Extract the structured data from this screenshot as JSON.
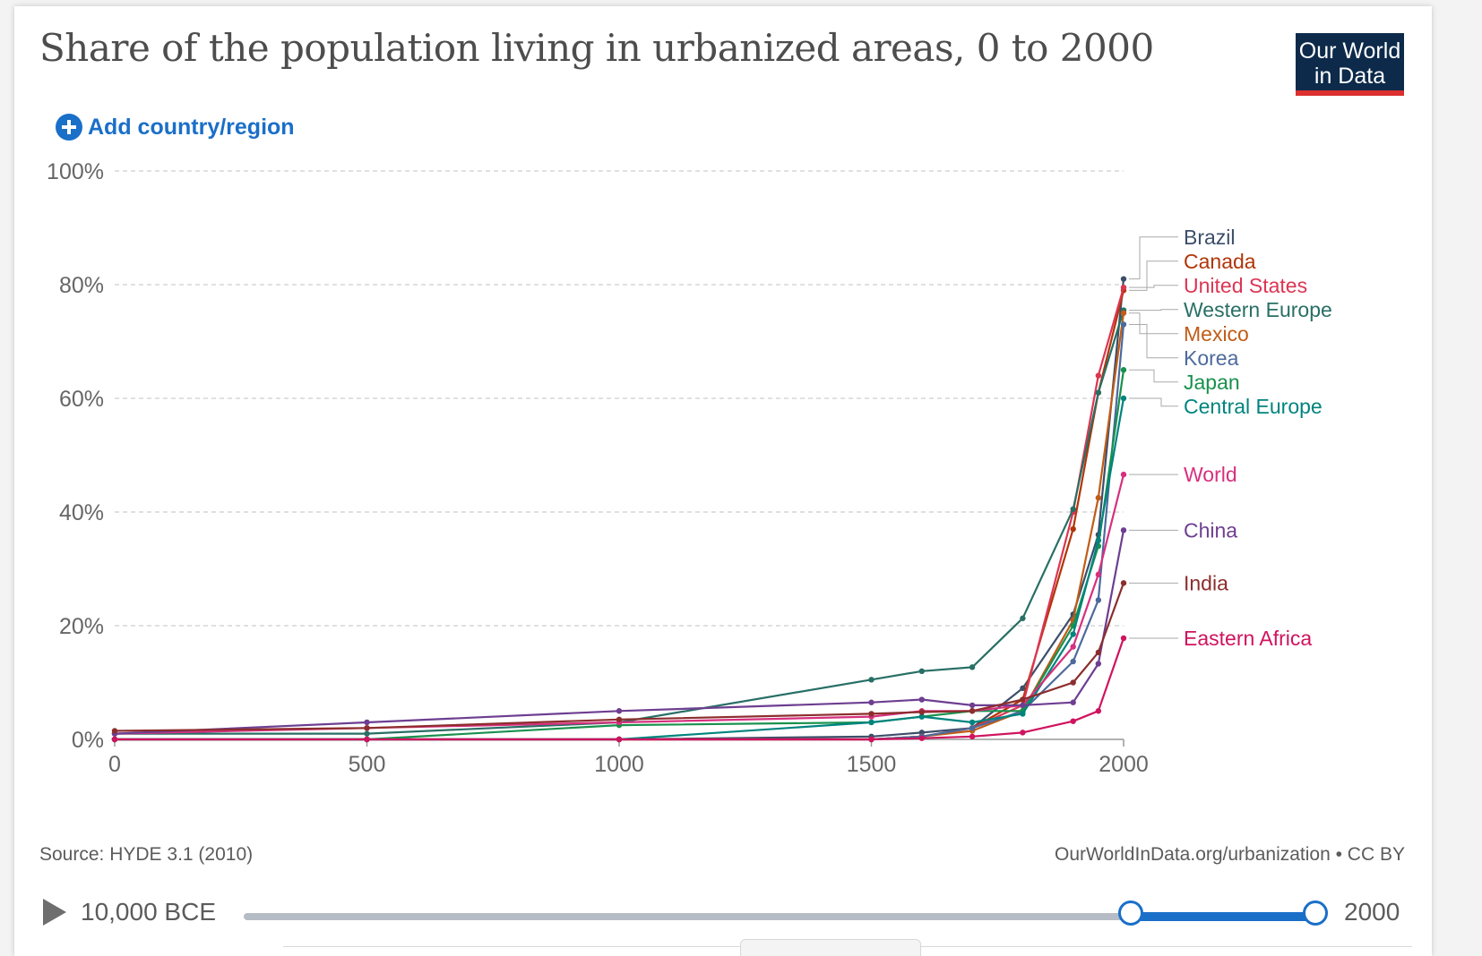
{
  "title": "Share of the population living in urbanized areas, 0 to 2000",
  "logo": {
    "line1": "Our World",
    "line2": "in Data"
  },
  "add_button": {
    "label": "Add country/region"
  },
  "footer": {
    "source": "Source: HYDE 3.1 (2010)",
    "url": "OurWorldInData.org/urbanization • CC BY"
  },
  "timeline": {
    "start_label": "10,000 BCE",
    "end_label": "2000"
  },
  "chart_data": {
    "type": "line",
    "title": "Share of the population living in urbanized areas, 0 to 2000",
    "xlim": [
      0,
      2000
    ],
    "ylim": [
      0,
      100
    ],
    "x_ticks": [
      0,
      500,
      1000,
      1500,
      2000
    ],
    "x_tick_labels": [
      "0",
      "500",
      "1000",
      "1500",
      "2000"
    ],
    "y_ticks": [
      0,
      20,
      40,
      60,
      80,
      100
    ],
    "y_tick_labels": [
      "0%",
      "20%",
      "40%",
      "60%",
      "80%",
      "100%"
    ],
    "grid": true,
    "legend_placement": "right",
    "series": [
      {
        "name": "Brazil",
        "color": "#3c4e6a",
        "points": [
          [
            0,
            0
          ],
          [
            500,
            0
          ],
          [
            1000,
            0
          ],
          [
            1500,
            0.5
          ],
          [
            1600,
            1.2
          ],
          [
            1700,
            2
          ],
          [
            1800,
            9
          ],
          [
            1900,
            22
          ],
          [
            1950,
            36
          ],
          [
            2000,
            81
          ]
        ]
      },
      {
        "name": "Canada",
        "color": "#b13507",
        "points": [
          [
            0,
            0
          ],
          [
            500,
            0
          ],
          [
            1000,
            0
          ],
          [
            1500,
            0
          ],
          [
            1600,
            0.5
          ],
          [
            1700,
            2
          ],
          [
            1800,
            7
          ],
          [
            1900,
            37
          ],
          [
            1950,
            61
          ],
          [
            2000,
            79
          ]
        ]
      },
      {
        "name": "United States",
        "color": "#dc3553",
        "points": [
          [
            0,
            0
          ],
          [
            500,
            0
          ],
          [
            1000,
            0
          ],
          [
            1500,
            0
          ],
          [
            1600,
            0.5
          ],
          [
            1700,
            2
          ],
          [
            1800,
            6
          ],
          [
            1900,
            40
          ],
          [
            1950,
            64
          ],
          [
            2000,
            79.5
          ]
        ]
      },
      {
        "name": "Western Europe",
        "color": "#286f65",
        "points": [
          [
            0,
            1
          ],
          [
            500,
            1
          ],
          [
            1000,
            3
          ],
          [
            1500,
            10.5
          ],
          [
            1600,
            12
          ],
          [
            1700,
            12.7
          ],
          [
            1800,
            21.3
          ],
          [
            1900,
            40.5
          ],
          [
            1950,
            61
          ],
          [
            2000,
            75.5
          ]
        ]
      },
      {
        "name": "Mexico",
        "color": "#c15c17",
        "points": [
          [
            0,
            0
          ],
          [
            500,
            0
          ],
          [
            1000,
            0
          ],
          [
            1500,
            0
          ],
          [
            1600,
            0.5
          ],
          [
            1700,
            1.5
          ],
          [
            1800,
            5
          ],
          [
            1900,
            21
          ],
          [
            1950,
            42.5
          ],
          [
            2000,
            75
          ]
        ]
      },
      {
        "name": "Korea",
        "color": "#4c6a9c",
        "points": [
          [
            0,
            0
          ],
          [
            500,
            0
          ],
          [
            1000,
            0
          ],
          [
            1500,
            0
          ],
          [
            1600,
            0.5
          ],
          [
            1700,
            2
          ],
          [
            1800,
            5
          ],
          [
            1900,
            13.7
          ],
          [
            1950,
            24.5
          ],
          [
            2000,
            73
          ]
        ]
      },
      {
        "name": "Japan",
        "color": "#18914d",
        "points": [
          [
            0,
            0
          ],
          [
            500,
            0
          ],
          [
            1000,
            2.5
          ],
          [
            1500,
            3
          ],
          [
            1600,
            4
          ],
          [
            1700,
            5
          ],
          [
            1800,
            5
          ],
          [
            1900,
            20
          ],
          [
            1950,
            34
          ],
          [
            2000,
            65
          ]
        ]
      },
      {
        "name": "Central Europe",
        "color": "#00847e",
        "points": [
          [
            0,
            0
          ],
          [
            500,
            0
          ],
          [
            1000,
            0
          ],
          [
            1500,
            3
          ],
          [
            1600,
            4
          ],
          [
            1700,
            3
          ],
          [
            1800,
            4.5
          ],
          [
            1900,
            18.5
          ],
          [
            1950,
            35
          ],
          [
            2000,
            60
          ]
        ]
      },
      {
        "name": "World",
        "color": "#d6307e",
        "points": [
          [
            0,
            1
          ],
          [
            500,
            2
          ],
          [
            1000,
            3
          ],
          [
            1500,
            4
          ],
          [
            1600,
            5
          ],
          [
            1700,
            5
          ],
          [
            1800,
            6
          ],
          [
            1900,
            16.3
          ],
          [
            1950,
            29
          ],
          [
            2000,
            46.6
          ]
        ]
      },
      {
        "name": "China",
        "color": "#6d3e91",
        "points": [
          [
            0,
            1
          ],
          [
            500,
            3
          ],
          [
            1000,
            5
          ],
          [
            1500,
            6.5
          ],
          [
            1600,
            7
          ],
          [
            1700,
            6
          ],
          [
            1800,
            6
          ],
          [
            1900,
            6.5
          ],
          [
            1950,
            13.3
          ],
          [
            2000,
            36.8
          ]
        ]
      },
      {
        "name": "India",
        "color": "#8c2d2d",
        "points": [
          [
            0,
            1.5
          ],
          [
            500,
            2
          ],
          [
            1000,
            3.5
          ],
          [
            1500,
            4.5
          ],
          [
            1600,
            4.8
          ],
          [
            1700,
            5
          ],
          [
            1800,
            7
          ],
          [
            1900,
            10
          ],
          [
            1950,
            15.3
          ],
          [
            2000,
            27.5
          ]
        ]
      },
      {
        "name": "Eastern Africa",
        "color": "#d0135f",
        "points": [
          [
            0,
            0
          ],
          [
            500,
            0
          ],
          [
            1000,
            0
          ],
          [
            1500,
            0
          ],
          [
            1600,
            0.2
          ],
          [
            1700,
            0.5
          ],
          [
            1800,
            1.2
          ],
          [
            1900,
            3.2
          ],
          [
            1950,
            5
          ],
          [
            2000,
            17.8
          ]
        ]
      }
    ]
  }
}
